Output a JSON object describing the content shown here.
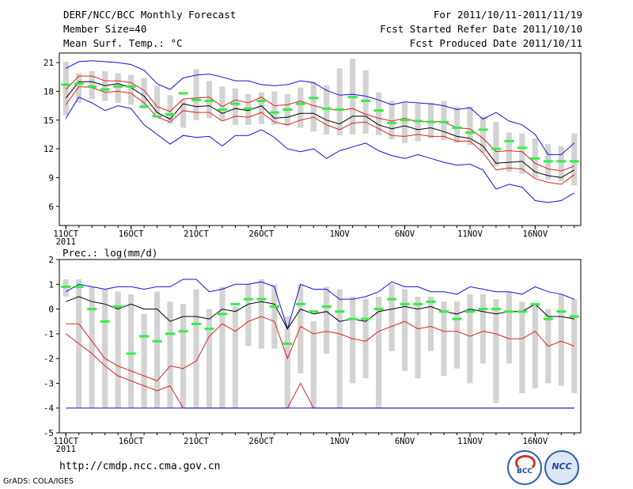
{
  "header": {
    "title": "DERF/NCC/BCC Monthly Forecast",
    "member_size": "Member Size=40",
    "variable1": "Mean Surf. Temp.: °C",
    "period": "For 2011/10/11-2011/11/19",
    "refer_date": "Fcst Started Refer Date 2011/10/10",
    "produced_date": "Fcst Produced Date 2011/10/11"
  },
  "footer": {
    "url": "http://cmdp.ncc.cma.gov.cn",
    "grads": "GrADS: COLA/IGES",
    "logo_bcc": "BCC",
    "logo_ncc": "NCC"
  },
  "colors": {
    "ensemble_box": "#d3d3d3",
    "ensemble_median": "#33ee44",
    "mean": "#000000",
    "inner_band": "#dd2222",
    "outer_band": "#1111dd"
  },
  "chart_data": [
    {
      "type": "line",
      "title": "Mean Surf. Temp.: °C",
      "xlabel": "",
      "ylabel": "°C",
      "xlim": [
        0.5,
        40.5
      ],
      "ylim": [
        4,
        22
      ],
      "yticks": [
        6,
        9,
        12,
        15,
        18,
        21
      ],
      "x_ticks": [
        {
          "day": 1,
          "label": "11OCT",
          "sub": "2011"
        },
        {
          "day": 6,
          "label": "16OCT"
        },
        {
          "day": 11,
          "label": "21OCT"
        },
        {
          "day": 16,
          "label": "26OCT"
        },
        {
          "day": 22,
          "label": "1NOV"
        },
        {
          "day": 27,
          "label": "6NOV"
        },
        {
          "day": 32,
          "label": "11NOV"
        },
        {
          "day": 37,
          "label": "16NOV"
        }
      ],
      "x": [
        1,
        2,
        3,
        4,
        5,
        6,
        7,
        8,
        9,
        10,
        11,
        12,
        13,
        14,
        15,
        16,
        17,
        18,
        19,
        20,
        21,
        22,
        23,
        24,
        25,
        26,
        27,
        28,
        29,
        30,
        31,
        32,
        33,
        34,
        35,
        36,
        37,
        38,
        39,
        40
      ],
      "box_low": [
        15.5,
        16.8,
        17.2,
        17.0,
        16.8,
        16.6,
        16.2,
        15.6,
        14.6,
        14.2,
        15.0,
        15.2,
        15.0,
        14.5,
        14.5,
        14.6,
        14.5,
        14.4,
        14.2,
        13.8,
        13.5,
        13.4,
        13.5,
        13.6,
        13.4,
        13.0,
        12.6,
        12.8,
        13.1,
        12.9,
        12.6,
        12.4,
        11.6,
        10.2,
        9.6,
        9.4,
        9.0,
        8.8,
        8.6,
        8.2
      ],
      "box_high": [
        21.1,
        19.9,
        20.1,
        20.1,
        19.9,
        19.7,
        19.4,
        18.6,
        17.6,
        17.1,
        20.3,
        19.1,
        18.5,
        18.3,
        17.7,
        17.9,
        18.0,
        17.7,
        18.4,
        19.0,
        18.6,
        20.4,
        21.4,
        20.2,
        17.9,
        17.0,
        16.8,
        16.7,
        16.8,
        17.0,
        16.4,
        16.4,
        15.4,
        14.8,
        13.7,
        13.6,
        13.1,
        12.5,
        12.3,
        13.6
      ],
      "ens_median": [
        18.7,
        18.8,
        18.5,
        18.2,
        18.5,
        18.5,
        16.4,
        15.4,
        15.6,
        17.8,
        17.1,
        17.0,
        16.1,
        16.7,
        16.2,
        17.0,
        15.8,
        16.1,
        16.7,
        17.3,
        16.2,
        16.1,
        17.4,
        17.0,
        16.0,
        14.7,
        15.0,
        14.9,
        14.8,
        14.8,
        14.2,
        13.7,
        14.0,
        12.0,
        12.8,
        12.1,
        11.0,
        10.7,
        10.7,
        10.7
      ],
      "series": [
        {
          "name": "upper2",
          "color": "#1111dd",
          "values": [
            20.4,
            21.1,
            21.2,
            21.1,
            21.0,
            20.8,
            20.2,
            18.8,
            18.2,
            19.4,
            19.7,
            19.8,
            19.5,
            19.1,
            19.1,
            18.7,
            18.6,
            18.7,
            19.1,
            18.9,
            18.1,
            17.6,
            17.7,
            17.5,
            17.1,
            16.6,
            16.9,
            16.8,
            16.7,
            16.5,
            16.1,
            16.3,
            15.1,
            15.8,
            14.9,
            14.5,
            13.5,
            11.4,
            11.4,
            12.6
          ]
        },
        {
          "name": "upper1",
          "color": "#dd2222",
          "values": [
            18.2,
            19.6,
            19.6,
            19.1,
            19.1,
            18.9,
            18.1,
            16.4,
            15.9,
            17.2,
            17.3,
            17.4,
            16.4,
            17.1,
            16.8,
            17.4,
            16.5,
            16.6,
            17.0,
            16.5,
            16.2,
            16.0,
            16.2,
            15.6,
            15.2,
            14.9,
            15.2,
            14.8,
            14.9,
            14.8,
            14.2,
            14.1,
            13.1,
            11.7,
            11.8,
            11.7,
            10.5,
            9.9,
            9.7,
            10.2
          ]
        },
        {
          "name": "mean",
          "color": "#000000",
          "values": [
            17.3,
            19.0,
            19.0,
            18.6,
            18.8,
            18.4,
            17.5,
            15.8,
            15.1,
            16.7,
            16.4,
            16.5,
            15.7,
            16.2,
            16.0,
            16.5,
            15.2,
            15.3,
            15.7,
            15.7,
            15.0,
            14.6,
            15.4,
            15.4,
            14.5,
            14.1,
            14.4,
            14.0,
            14.2,
            13.8,
            13.3,
            13.1,
            12.3,
            10.5,
            10.6,
            10.7,
            9.6,
            9.2,
            9.0,
            9.8
          ]
        },
        {
          "name": "lower1",
          "color": "#dd2222",
          "values": [
            16.6,
            18.5,
            18.4,
            17.9,
            18.0,
            17.8,
            16.8,
            15.3,
            14.8,
            16.0,
            15.8,
            15.8,
            14.9,
            15.4,
            15.3,
            15.8,
            14.8,
            14.5,
            15.0,
            15.3,
            14.5,
            14.0,
            14.7,
            14.8,
            14.1,
            13.4,
            13.3,
            13.5,
            13.3,
            13.3,
            12.8,
            12.8,
            11.6,
            9.8,
            10.0,
            9.9,
            8.9,
            8.5,
            8.3,
            9.3
          ]
        },
        {
          "name": "lower2",
          "color": "#1111dd",
          "values": [
            15.2,
            17.4,
            16.8,
            16.0,
            16.5,
            16.2,
            14.5,
            13.5,
            12.5,
            13.4,
            13.2,
            13.3,
            12.3,
            13.4,
            13.4,
            14.0,
            13.2,
            12.0,
            11.7,
            12.0,
            11.0,
            11.8,
            12.2,
            12.6,
            11.8,
            11.3,
            11.0,
            11.4,
            11.0,
            10.6,
            10.3,
            10.4,
            9.8,
            7.8,
            8.3,
            8.0,
            6.6,
            6.4,
            6.6,
            7.4
          ]
        }
      ]
    },
    {
      "type": "line",
      "title": "Prec.: log(mm/d)",
      "xlabel": "",
      "ylabel": "log(mm/d)",
      "xlim": [
        0.5,
        40.5
      ],
      "ylim": [
        -5,
        2
      ],
      "yticks": [
        -5,
        -4,
        -3,
        -2,
        -1,
        0,
        1,
        2
      ],
      "x_ticks": [
        {
          "day": 1,
          "label": "11OCT",
          "sub": "2011"
        },
        {
          "day": 6,
          "label": "16OCT"
        },
        {
          "day": 11,
          "label": "21OCT"
        },
        {
          "day": 16,
          "label": "26OCT"
        },
        {
          "day": 22,
          "label": "1NOV"
        },
        {
          "day": 27,
          "label": "6NOV"
        },
        {
          "day": 32,
          "label": "11NOV"
        },
        {
          "day": 37,
          "label": "16NOV"
        }
      ],
      "x": [
        1,
        2,
        3,
        4,
        5,
        6,
        7,
        8,
        9,
        10,
        11,
        12,
        13,
        14,
        15,
        16,
        17,
        18,
        19,
        20,
        21,
        22,
        23,
        24,
        25,
        26,
        27,
        28,
        29,
        30,
        31,
        32,
        33,
        34,
        35,
        36,
        37,
        38,
        39,
        40
      ],
      "box_low": [
        0.5,
        -4.0,
        -4.0,
        -4.0,
        -4.0,
        -4.0,
        -4.0,
        -4.0,
        -4.0,
        -4.0,
        -4.0,
        -4.0,
        -4.0,
        -4.0,
        -1.5,
        -1.6,
        -1.6,
        -4.0,
        -2.6,
        -4.0,
        -1.8,
        -4.0,
        -3.0,
        -2.8,
        -4.0,
        -1.7,
        -2.5,
        -2.8,
        -1.7,
        -2.7,
        -2.4,
        -3.0,
        -2.2,
        -3.8,
        -2.2,
        -3.4,
        -3.2,
        -3.0,
        -3.1,
        -3.4
      ],
      "box_high": [
        1.2,
        1.2,
        0.9,
        0.8,
        0.7,
        0.6,
        -0.2,
        0.7,
        0.3,
        0.2,
        0.8,
        0.0,
        0.9,
        0.1,
        1.0,
        1.2,
        1.0,
        -0.3,
        1.0,
        -0.5,
        0.9,
        0.8,
        0.5,
        0.4,
        0.5,
        1.0,
        0.8,
        0.5,
        0.5,
        0.3,
        0.3,
        0.6,
        0.6,
        0.4,
        0.7,
        0.3,
        0.2,
        0.0,
        0.6,
        0.4
      ],
      "ens_median": [
        0.9,
        0.9,
        0.0,
        -0.5,
        0.1,
        -1.8,
        -1.1,
        -1.3,
        -1.0,
        -0.9,
        -0.6,
        -0.8,
        -0.2,
        0.2,
        0.4,
        0.4,
        0.1,
        -1.4,
        0.2,
        -0.1,
        0.1,
        -0.1,
        -0.4,
        -0.4,
        0.0,
        0.4,
        0.2,
        0.2,
        0.3,
        -0.1,
        -0.4,
        -0.1,
        0.0,
        0.0,
        -0.1,
        -0.1,
        0.2,
        -0.4,
        -0.1,
        -0.3
      ],
      "series": [
        {
          "name": "upper2",
          "color": "#1111dd",
          "values": [
            0.7,
            1.0,
            0.9,
            0.8,
            0.9,
            0.9,
            0.8,
            0.9,
            0.9,
            1.2,
            1.2,
            0.7,
            0.8,
            1.0,
            1.0,
            1.1,
            0.9,
            -0.8,
            1.0,
            0.8,
            0.8,
            0.4,
            0.4,
            0.5,
            0.7,
            1.1,
            0.9,
            0.9,
            0.7,
            0.7,
            0.6,
            0.9,
            0.8,
            0.7,
            0.7,
            0.6,
            0.9,
            0.7,
            0.6,
            0.4
          ]
        },
        {
          "name": "mean",
          "color": "#000000",
          "values": [
            0.3,
            0.5,
            0.3,
            0.2,
            0.0,
            0.2,
            0.0,
            0.0,
            -0.5,
            -0.3,
            -0.3,
            -0.4,
            0.0,
            -0.1,
            0.2,
            0.3,
            0.2,
            -0.8,
            0.0,
            -0.2,
            -0.1,
            -0.5,
            -0.4,
            -0.5,
            -0.1,
            0.0,
            0.1,
            0.0,
            0.1,
            -0.1,
            -0.2,
            0.0,
            -0.1,
            -0.2,
            -0.1,
            -0.1,
            0.2,
            -0.3,
            -0.3,
            -0.4
          ]
        },
        {
          "name": "lower1",
          "color": "#dd2222",
          "values": [
            -0.6,
            -0.6,
            -1.3,
            -2.0,
            -2.3,
            -2.5,
            -2.7,
            -2.9,
            -2.3,
            -2.4,
            -2.1,
            -1.1,
            -0.6,
            -0.9,
            -0.5,
            -0.3,
            -0.5,
            -2.0,
            -0.7,
            -1.0,
            -0.9,
            -1.0,
            -1.2,
            -1.3,
            -0.9,
            -0.7,
            -0.5,
            -0.8,
            -0.7,
            -0.9,
            -0.9,
            -1.1,
            -0.9,
            -1.0,
            -1.2,
            -1.2,
            -0.9,
            -1.5,
            -1.3,
            -1.5
          ]
        },
        {
          "name": "lower2",
          "color": "#dd2222",
          "values": [
            -1.0,
            -1.4,
            -1.8,
            -2.3,
            -2.7,
            -2.9,
            -3.1,
            -3.3,
            -3.1,
            -4.0,
            -4.0,
            -4.0,
            -4.0,
            -4.0,
            -4.0,
            -4.0,
            -4.0,
            -4.0,
            -3.0,
            -4.0,
            -4.0,
            -4.0,
            -4.0,
            -4.0,
            -4.0,
            -4.0,
            -4.0,
            -4.0,
            -4.0,
            -4.0,
            -4.0,
            -4.0,
            -4.0,
            -4.0,
            -4.0,
            -4.0,
            -4.0,
            -4.0,
            -4.0,
            -4.0
          ]
        },
        {
          "name": "floor",
          "color": "#1111dd",
          "values": [
            -4.0,
            -4.0,
            -4.0,
            -4.0,
            -4.0,
            -4.0,
            -4.0,
            -4.0,
            -4.0,
            -4.0,
            -4.0,
            -4.0,
            -4.0,
            -4.0,
            -4.0,
            -4.0,
            -4.0,
            -4.0,
            -4.0,
            -4.0,
            -4.0,
            -4.0,
            -4.0,
            -4.0,
            -4.0,
            -4.0,
            -4.0,
            -4.0,
            -4.0,
            -4.0,
            -4.0,
            -4.0,
            -4.0,
            -4.0,
            -4.0,
            -4.0,
            -4.0,
            -4.0,
            -4.0,
            -4.0
          ]
        }
      ]
    }
  ]
}
